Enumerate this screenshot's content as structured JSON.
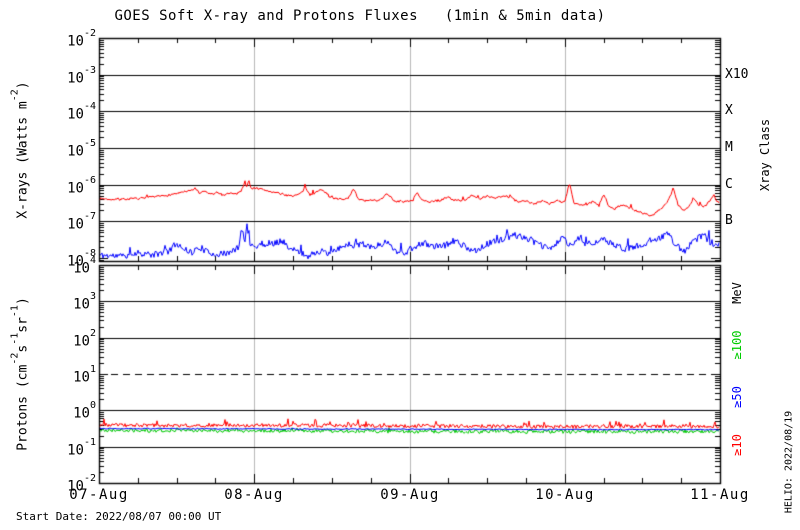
{
  "header": {
    "title": "GOES Soft X-ray and Protons Fluxes   (1min & 5min data)"
  },
  "footer": {
    "start_date": "Start Date: 2022/08/07 00:00 UT"
  },
  "watermark": {
    "text": "HELIO: 2022/08/19"
  },
  "chart_data": {
    "type": "line",
    "title": "GOES Soft X-ray and Protons Fluxes (1min & 5min data)",
    "x_axis": {
      "tick_labels": [
        "07-Aug",
        "08-Aug",
        "09-Aug",
        "10-Aug",
        "11-Aug"
      ],
      "range_days": [
        0,
        4
      ],
      "minor_tick_hours": 6,
      "grid_days": [
        1,
        2,
        3
      ],
      "grid_color": "#b8b8b8"
    },
    "panels": [
      {
        "id": "xray",
        "ylabel_segments": [
          {
            "t": "X-rays (Watts m"
          },
          {
            "s": "-2"
          },
          {
            "t": ")"
          }
        ],
        "y_log_top": -2,
        "y_log_bottom": -8.08,
        "ytick_exponents": [
          -2,
          -3,
          -4,
          -5,
          -6,
          -7,
          -8
        ],
        "hlines_solid_log": [
          -3,
          -4,
          -5,
          -6,
          -7
        ],
        "hlines_dashed_log": [],
        "right_axis_title": "Xray Class",
        "class_labels": [
          {
            "label": "X10",
            "log": -3
          },
          {
            "label": "X",
            "log": -4
          },
          {
            "label": "M",
            "log": -5
          },
          {
            "label": "C",
            "log": -6
          },
          {
            "label": "B",
            "log": -7
          }
        ],
        "series": [
          {
            "name": "xray-short-wave",
            "color": "#0000ff",
            "noise_log": 0.09,
            "spike_log": 0.3,
            "spike_prob": 0.05,
            "seed": 11,
            "points": [
              [
                0,
                -7.92
              ],
              [
                0.15,
                -7.95
              ],
              [
                0.25,
                -7.85
              ],
              [
                0.35,
                -7.92
              ],
              [
                0.45,
                -7.8
              ],
              [
                0.5,
                -7.6
              ],
              [
                0.55,
                -7.75
              ],
              [
                0.6,
                -7.85
              ],
              [
                0.65,
                -7.7
              ],
              [
                0.7,
                -7.85
              ],
              [
                0.78,
                -7.9
              ],
              [
                0.85,
                -7.85
              ],
              [
                0.9,
                -7.7
              ],
              [
                0.92,
                -7.2
              ],
              [
                0.94,
                -7.5
              ],
              [
                0.955,
                -7.1
              ],
              [
                0.97,
                -7.6
              ],
              [
                1,
                -7.7
              ],
              [
                1.05,
                -7.6
              ],
              [
                1.1,
                -7.65
              ],
              [
                1.18,
                -7.5
              ],
              [
                1.22,
                -7.75
              ],
              [
                1.3,
                -7.85
              ],
              [
                1.35,
                -7.95
              ],
              [
                1.42,
                -7.8
              ],
              [
                1.48,
                -7.9
              ],
              [
                1.55,
                -7.75
              ],
              [
                1.6,
                -7.6
              ],
              [
                1.65,
                -7.68
              ],
              [
                1.7,
                -7.62
              ],
              [
                1.78,
                -7.7
              ],
              [
                1.85,
                -7.55
              ],
              [
                1.9,
                -7.75
              ],
              [
                1.95,
                -7.88
              ],
              [
                2,
                -7.8
              ],
              [
                2.05,
                -7.65
              ],
              [
                2.1,
                -7.6
              ],
              [
                2.18,
                -7.7
              ],
              [
                2.25,
                -7.62
              ],
              [
                2.3,
                -7.52
              ],
              [
                2.36,
                -7.7
              ],
              [
                2.42,
                -7.8
              ],
              [
                2.48,
                -7.65
              ],
              [
                2.55,
                -7.55
              ],
              [
                2.6,
                -7.48
              ],
              [
                2.66,
                -7.38
              ],
              [
                2.72,
                -7.4
              ],
              [
                2.78,
                -7.5
              ],
              [
                2.84,
                -7.65
              ],
              [
                2.9,
                -7.75
              ],
              [
                2.95,
                -7.6
              ],
              [
                3,
                -7.38
              ],
              [
                3.02,
                -7.7
              ],
              [
                3.08,
                -7.48
              ],
              [
                3.14,
                -7.6
              ],
              [
                3.2,
                -7.55
              ],
              [
                3.26,
                -7.52
              ],
              [
                3.32,
                -7.65
              ],
              [
                3.38,
                -7.75
              ],
              [
                3.44,
                -7.7
              ],
              [
                3.5,
                -7.65
              ],
              [
                3.56,
                -7.5
              ],
              [
                3.62,
                -7.42
              ],
              [
                3.66,
                -7.32
              ],
              [
                3.7,
                -7.55
              ],
              [
                3.76,
                -7.85
              ],
              [
                3.82,
                -7.6
              ],
              [
                3.86,
                -7.45
              ],
              [
                3.9,
                -7.38
              ],
              [
                3.94,
                -7.6
              ],
              [
                4,
                -7.62
              ]
            ]
          },
          {
            "name": "xray-long-wave",
            "color": "#ff0000",
            "noise_log": 0.03,
            "spike_log": 0.12,
            "spike_prob": 0.04,
            "seed": 7,
            "points": [
              [
                0,
                -6.38
              ],
              [
                0.12,
                -6.4
              ],
              [
                0.25,
                -6.38
              ],
              [
                0.35,
                -6.34
              ],
              [
                0.45,
                -6.28
              ],
              [
                0.52,
                -6.22
              ],
              [
                0.58,
                -6.18
              ],
              [
                0.62,
                -6.1
              ],
              [
                0.65,
                -6.25
              ],
              [
                0.68,
                -6.18
              ],
              [
                0.72,
                -6.26
              ],
              [
                0.76,
                -6.22
              ],
              [
                0.8,
                -6.28
              ],
              [
                0.84,
                -6.22
              ],
              [
                0.88,
                -6.26
              ],
              [
                0.92,
                -6.15
              ],
              [
                0.94,
                -5.88
              ],
              [
                0.95,
                -6.08
              ],
              [
                0.96,
                -5.92
              ],
              [
                0.98,
                -6.1
              ],
              [
                1,
                -6.08
              ],
              [
                1.04,
                -6.12
              ],
              [
                1.08,
                -6.16
              ],
              [
                1.14,
                -6.22
              ],
              [
                1.2,
                -6.28
              ],
              [
                1.26,
                -6.3
              ],
              [
                1.3,
                -6.24
              ],
              [
                1.33,
                -6.08
              ],
              [
                1.36,
                -6.28
              ],
              [
                1.4,
                -6.2
              ],
              [
                1.44,
                -6.12
              ],
              [
                1.48,
                -6.32
              ],
              [
                1.54,
                -6.4
              ],
              [
                1.6,
                -6.38
              ],
              [
                1.64,
                -6.12
              ],
              [
                1.67,
                -6.4
              ],
              [
                1.72,
                -6.44
              ],
              [
                1.8,
                -6.42
              ],
              [
                1.86,
                -6.25
              ],
              [
                1.9,
                -6.44
              ],
              [
                1.96,
                -6.46
              ],
              [
                2.02,
                -6.44
              ],
              [
                2.05,
                -6.2
              ],
              [
                2.08,
                -6.44
              ],
              [
                2.14,
                -6.46
              ],
              [
                2.2,
                -6.42
              ],
              [
                2.25,
                -6.34
              ],
              [
                2.3,
                -6.44
              ],
              [
                2.36,
                -6.4
              ],
              [
                2.4,
                -6.3
              ],
              [
                2.45,
                -6.4
              ],
              [
                2.5,
                -6.3
              ],
              [
                2.55,
                -6.36
              ],
              [
                2.6,
                -6.3
              ],
              [
                2.65,
                -6.34
              ],
              [
                2.7,
                -6.48
              ],
              [
                2.76,
                -6.44
              ],
              [
                2.8,
                -6.54
              ],
              [
                2.86,
                -6.42
              ],
              [
                2.9,
                -6.52
              ],
              [
                2.95,
                -6.44
              ],
              [
                3,
                -6.48
              ],
              [
                3.03,
                -5.95
              ],
              [
                3.06,
                -6.5
              ],
              [
                3.1,
                -6.55
              ],
              [
                3.14,
                -6.58
              ],
              [
                3.18,
                -6.45
              ],
              [
                3.22,
                -6.58
              ],
              [
                3.25,
                -6.25
              ],
              [
                3.28,
                -6.55
              ],
              [
                3.32,
                -6.66
              ],
              [
                3.36,
                -6.55
              ],
              [
                3.4,
                -6.6
              ],
              [
                3.44,
                -6.68
              ],
              [
                3.5,
                -6.78
              ],
              [
                3.56,
                -6.85
              ],
              [
                3.6,
                -6.7
              ],
              [
                3.64,
                -6.58
              ],
              [
                3.67,
                -6.4
              ],
              [
                3.7,
                -6.08
              ],
              [
                3.73,
                -6.55
              ],
              [
                3.77,
                -6.72
              ],
              [
                3.8,
                -6.6
              ],
              [
                3.83,
                -6.35
              ],
              [
                3.86,
                -6.55
              ],
              [
                3.9,
                -6.6
              ],
              [
                3.93,
                -6.45
              ],
              [
                3.96,
                -6.28
              ],
              [
                3.98,
                -6.45
              ],
              [
                4,
                -6.52
              ]
            ]
          }
        ]
      },
      {
        "id": "protons",
        "ylabel_segments": [
          {
            "t": "Protons (cm"
          },
          {
            "s": "-2"
          },
          {
            "t": "s"
          },
          {
            "s": "-1"
          },
          {
            "t": "sr"
          },
          {
            "s": "-1"
          },
          {
            "t": ")"
          }
        ],
        "y_log_top": 4,
        "y_log_bottom": -2,
        "ytick_exponents": [
          4,
          3,
          2,
          1,
          0,
          -1,
          -2
        ],
        "hlines_solid_log": [
          3,
          2,
          0,
          -1
        ],
        "hlines_dashed_log": [
          1
        ],
        "right_axis_title": "MeV",
        "right_labels": [
          {
            "label": "MeV",
            "color": "#000000"
          },
          {
            "label": "≥100",
            "color": "#00cc00"
          },
          {
            "label": "≥50",
            "color": "#0000ff"
          },
          {
            "label": "≥10",
            "color": "#ff0000"
          }
        ],
        "series": [
          {
            "name": "protons-ge-100MeV",
            "color": "#00cc00",
            "noise_log": 0.05,
            "spike_log": 0.08,
            "spike_prob": 0.05,
            "seed": 21,
            "points": [
              [
                0,
                -0.55
              ],
              [
                1,
                -0.56
              ],
              [
                2,
                -0.58
              ],
              [
                3,
                -0.59
              ],
              [
                4,
                -0.58
              ]
            ]
          },
          {
            "name": "protons-ge-50MeV",
            "color": "#0000ff",
            "noise_log": 0.015,
            "spike_log": 0,
            "spike_prob": 0,
            "seed": 22,
            "points": [
              [
                0,
                -0.5
              ],
              [
                1,
                -0.51
              ],
              [
                2,
                -0.52
              ],
              [
                3,
                -0.53
              ],
              [
                4,
                -0.53
              ]
            ]
          },
          {
            "name": "protons-ge-10MeV",
            "color": "#ff0000",
            "noise_log": 0.05,
            "spike_log": 0.18,
            "spike_prob": 0.06,
            "seed": 23,
            "points": [
              [
                0,
                -0.4
              ],
              [
                0.5,
                -0.42
              ],
              [
                1,
                -0.41
              ],
              [
                1.5,
                -0.42
              ],
              [
                2,
                -0.43
              ],
              [
                2.5,
                -0.44
              ],
              [
                3,
                -0.45
              ],
              [
                3.5,
                -0.44
              ],
              [
                4,
                -0.44
              ]
            ]
          }
        ]
      }
    ]
  }
}
